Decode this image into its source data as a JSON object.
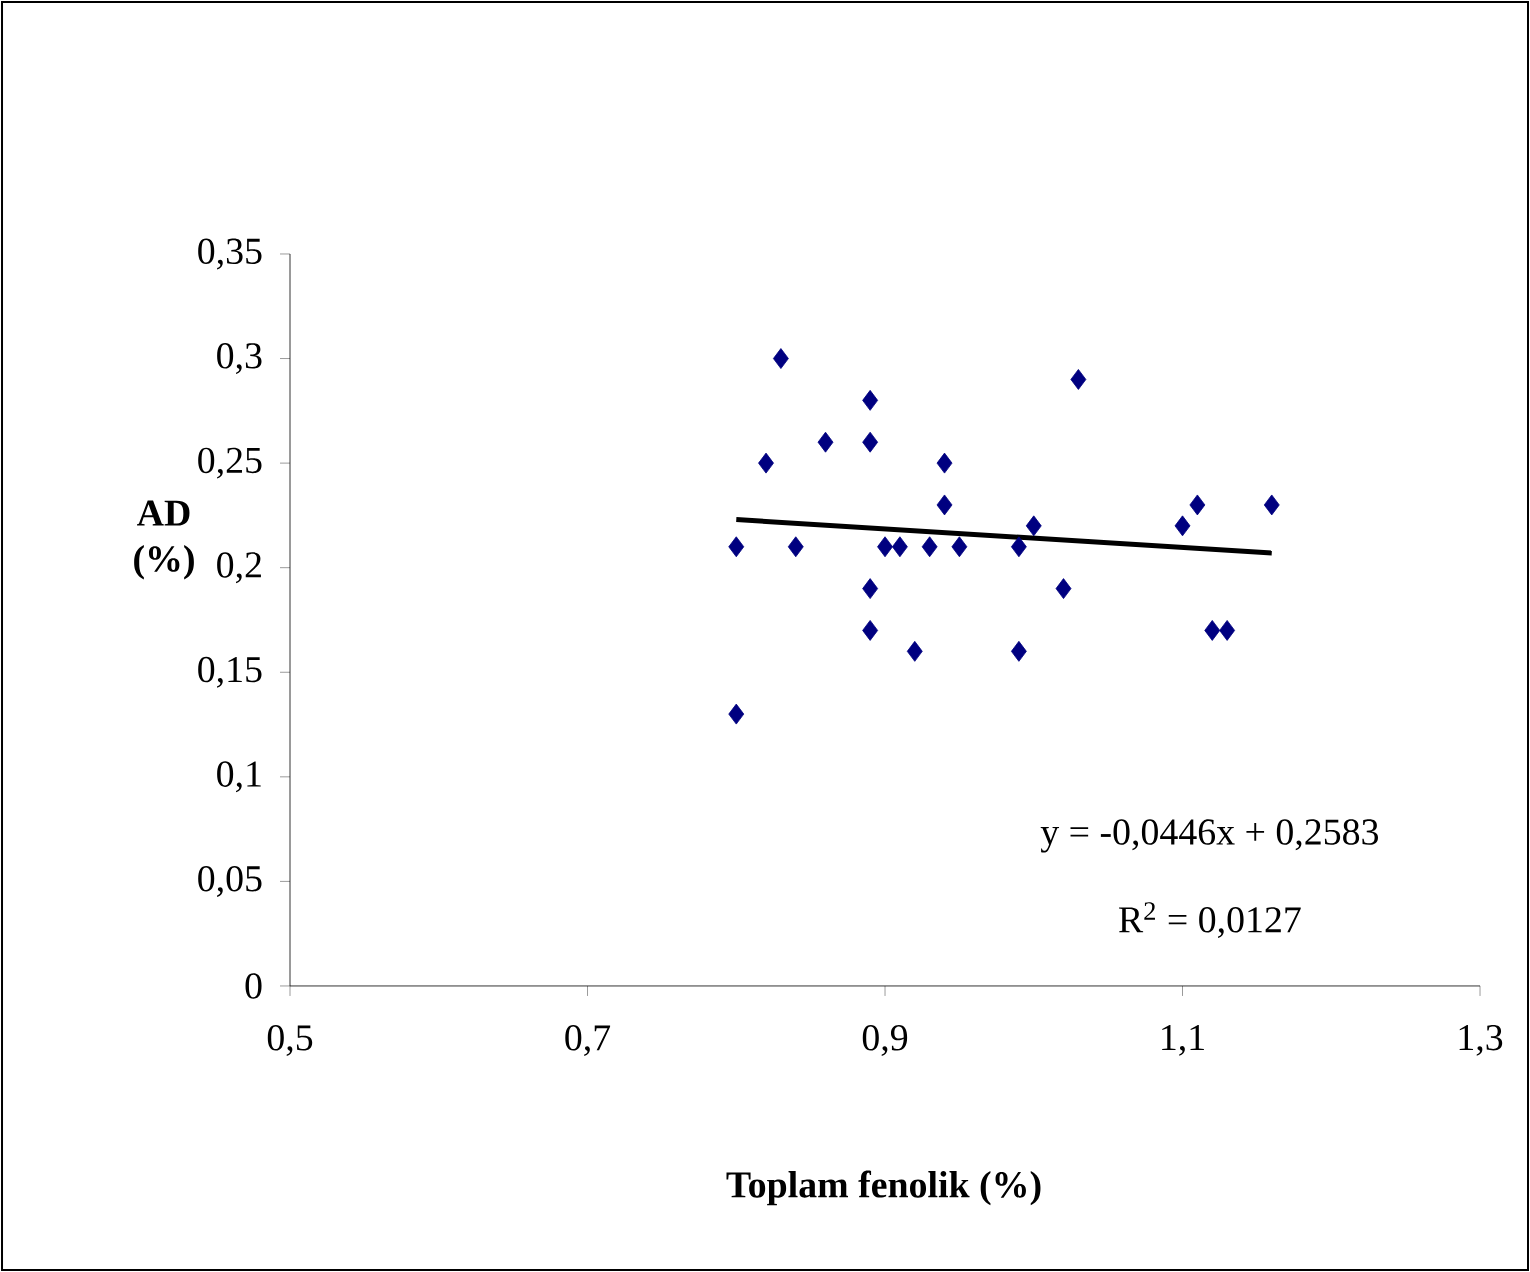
{
  "chart_data": {
    "type": "scatter",
    "xlabel": "Toplam fenolik (%)",
    "ylabel": "AD (%)",
    "xlim": [
      0.5,
      1.3
    ],
    "ylim": [
      0,
      0.35
    ],
    "xticks": [
      {
        "value": 0.5,
        "label": "0,5"
      },
      {
        "value": 0.7,
        "label": "0,7"
      },
      {
        "value": 0.9,
        "label": "0,9"
      },
      {
        "value": 1.1,
        "label": "1,1"
      },
      {
        "value": 1.3,
        "label": "1,3"
      }
    ],
    "yticks": [
      {
        "value": 0,
        "label": "0"
      },
      {
        "value": 0.05,
        "label": "0,05"
      },
      {
        "value": 0.1,
        "label": "0,1"
      },
      {
        "value": 0.15,
        "label": "0,15"
      },
      {
        "value": 0.2,
        "label": "0,2"
      },
      {
        "value": 0.25,
        "label": "0,25"
      },
      {
        "value": 0.3,
        "label": "0,3"
      },
      {
        "value": 0.35,
        "label": "0,35"
      }
    ],
    "grid": false,
    "marker": "diamond",
    "annotations": [
      "y = -0,0446x + 0,2583",
      "R$^{2}$ = 0,0127"
    ],
    "series": [
      {
        "type": "scatter",
        "color": "#000080",
        "x": [
          0.8,
          0.8,
          0.82,
          0.83,
          0.84,
          0.86,
          0.89,
          0.89,
          0.89,
          0.89,
          0.9,
          0.91,
          0.92,
          0.93,
          0.94,
          0.94,
          0.95,
          0.99,
          0.99,
          1.0,
          1.02,
          1.03,
          1.1,
          1.11,
          1.12,
          1.13,
          1.16
        ],
        "values": [
          0.21,
          0.13,
          0.25,
          0.3,
          0.21,
          0.26,
          0.28,
          0.26,
          0.19,
          0.17,
          0.21,
          0.21,
          0.16,
          0.21,
          0.25,
          0.23,
          0.21,
          0.21,
          0.16,
          0.22,
          0.19,
          0.29,
          0.22,
          0.23,
          0.17,
          0.17,
          0.23
        ]
      },
      {
        "type": "line",
        "color": "#000000",
        "marker": "none",
        "x": [
          0.8,
          1.16
        ],
        "values": [
          0.223,
          0.207
        ]
      }
    ]
  }
}
